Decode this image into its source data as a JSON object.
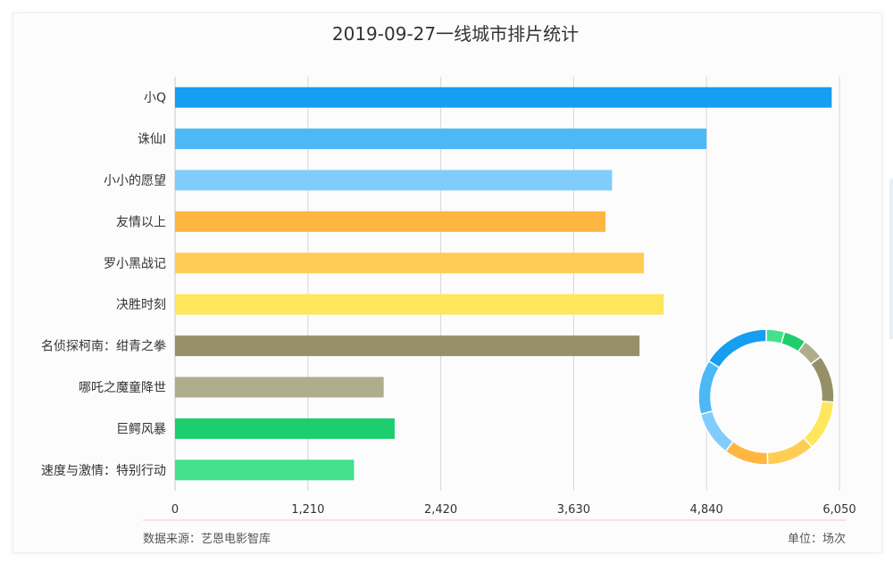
{
  "chart_data": {
    "type": "bar",
    "orientation": "horizontal",
    "title": "2019-09-27一线城市排片统计",
    "categories": [
      "小Q",
      "诛仙Ⅰ",
      "小小的愿望",
      "友情以上",
      "罗小黑战记",
      "决胜时刻",
      "名侦探柯南：绀青之拳",
      "哪吒之魔童降世",
      "巨鳄风暴",
      "速度与激情：特别行动"
    ],
    "values": [
      5980,
      4840,
      3980,
      3920,
      4270,
      4450,
      4230,
      1900,
      2000,
      1630
    ],
    "colors": [
      "#169ef0",
      "#4db8f6",
      "#80cdfb",
      "#ffb640",
      "#ffcc55",
      "#ffe65c",
      "#959068",
      "#b0ad8c",
      "#1ecd6e",
      "#43e18c"
    ],
    "xlim": [
      0,
      6050
    ],
    "xticks": [
      "0",
      "1,210",
      "2,420",
      "3,630",
      "4,840",
      "6,050"
    ],
    "grid": true,
    "donut": {
      "description": "share of screenings per film",
      "order": [
        9,
        8,
        7,
        6,
        5,
        4,
        3,
        2,
        1,
        0
      ]
    }
  },
  "footer": {
    "source": "数据来源：艺恩电影智库",
    "unit": "单位：场次"
  }
}
